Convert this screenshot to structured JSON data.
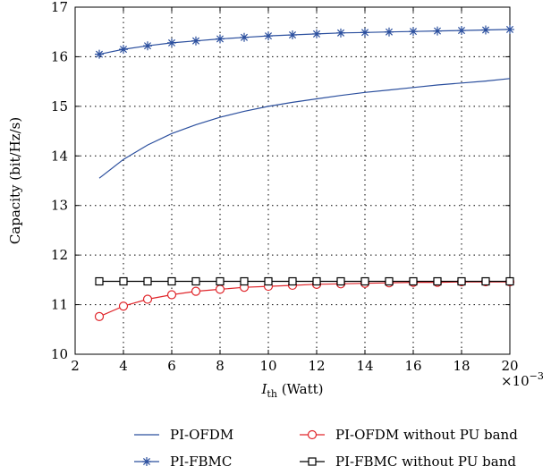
{
  "chart_data": {
    "type": "line",
    "title": "",
    "xlabel": {
      "main": "I",
      "sub": "th",
      "unit": " (Watt)"
    },
    "ylabel": "Capacity (bit/Hz/s)",
    "x_multiplier_label": "×10",
    "x_multiplier_exponent": "−3",
    "xlim": [
      2,
      20
    ],
    "ylim": [
      10,
      17
    ],
    "xticks": [
      "2",
      "4",
      "6",
      "8",
      "10",
      "12",
      "14",
      "16",
      "18",
      "20"
    ],
    "yticks": [
      "10",
      "11",
      "12",
      "13",
      "14",
      "15",
      "16",
      "17"
    ],
    "grid": true,
    "legend_placement": "below",
    "x": [
      3,
      4,
      5,
      6,
      7,
      8,
      9,
      10,
      11,
      12,
      13,
      14,
      15,
      16,
      17,
      18,
      19,
      20
    ],
    "series": [
      {
        "name": "PI-OFDM",
        "color": "#2b4f9e",
        "marker": "none",
        "values": [
          13.55,
          13.93,
          14.22,
          14.45,
          14.63,
          14.78,
          14.9,
          15.0,
          15.08,
          15.15,
          15.22,
          15.28,
          15.33,
          15.38,
          15.43,
          15.47,
          15.51,
          15.56
        ]
      },
      {
        "name": "PI-FBMC",
        "color": "#2b4f9e",
        "marker": "star",
        "values": [
          16.05,
          16.15,
          16.22,
          16.28,
          16.32,
          16.36,
          16.39,
          16.42,
          16.44,
          16.46,
          16.48,
          16.49,
          16.5,
          16.51,
          16.52,
          16.53,
          16.54,
          16.55
        ]
      },
      {
        "name": "PI-OFDM without PU band",
        "color": "#e0262b",
        "marker": "circle",
        "values": [
          10.76,
          10.97,
          11.11,
          11.2,
          11.27,
          11.31,
          11.35,
          11.37,
          11.39,
          11.41,
          11.42,
          11.43,
          11.44,
          11.45,
          11.45,
          11.46,
          11.46,
          11.46
        ]
      },
      {
        "name": "PI-FBMC without PU band",
        "color": "#000000",
        "marker": "square",
        "values": [
          11.47,
          11.47,
          11.47,
          11.47,
          11.47,
          11.47,
          11.47,
          11.47,
          11.47,
          11.47,
          11.47,
          11.47,
          11.47,
          11.47,
          11.47,
          11.47,
          11.47,
          11.47
        ]
      }
    ]
  }
}
